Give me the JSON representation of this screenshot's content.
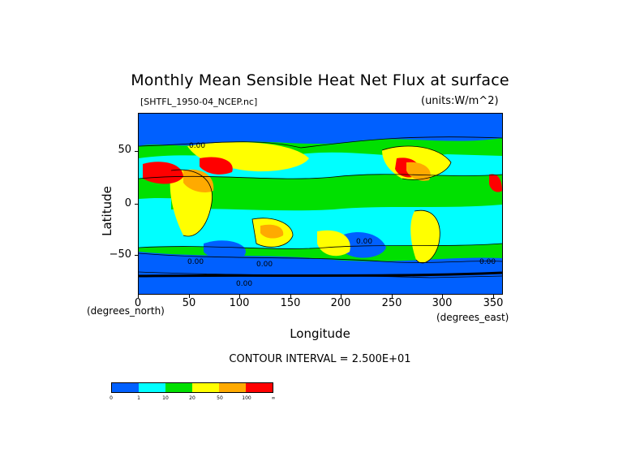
{
  "title": "Monthly Mean Sensible Heat Net Flux at surface",
  "file_label": "[SHTFL_1950-04_NCEP.nc]",
  "units_label": "(units:W/m^2)",
  "contour_interval": "CONTOUR INTERVAL = 2.500E+01",
  "axes": {
    "ylabel": "Latitude",
    "xlabel": "Longitude",
    "y_unit": "(degrees_north)",
    "x_unit": "(degrees_east)",
    "yticks": [
      "50",
      "0",
      "−50"
    ],
    "xticks": [
      "0",
      "50",
      "100",
      "150",
      "200",
      "250",
      "300",
      "350"
    ],
    "xlim": [
      0,
      360
    ],
    "ylim": [
      -90,
      90
    ]
  },
  "colorbar": {
    "labels": [
      "0",
      "1",
      "10",
      "20",
      "50",
      "100",
      "∞"
    ],
    "colors": [
      "#0060ff",
      "#00ffff",
      "#00e000",
      "#ffff00",
      "#ffaa00",
      "#ff0000"
    ]
  },
  "map_colors": {
    "ocean_low": "#0060ff",
    "ocean_mid": "#00ffff",
    "ocean_green": "#00e000",
    "land_yellow": "#ffff00",
    "land_orange": "#ffaa00",
    "land_red": "#ff0000"
  },
  "chart_data": {
    "type": "heatmap",
    "title": "Monthly Mean Sensible Heat Net Flux at surface",
    "xlabel": "Longitude",
    "ylabel": "Latitude",
    "xlim": [
      0,
      360
    ],
    "ylim": [
      -90,
      90
    ],
    "color_levels": [
      "0",
      "1",
      "10",
      "20",
      "50",
      "100",
      "∞"
    ],
    "contour_labels": [
      "0.00",
      "0.00",
      "0.00",
      "0.00",
      "0.00",
      "0.00"
    ]
  }
}
